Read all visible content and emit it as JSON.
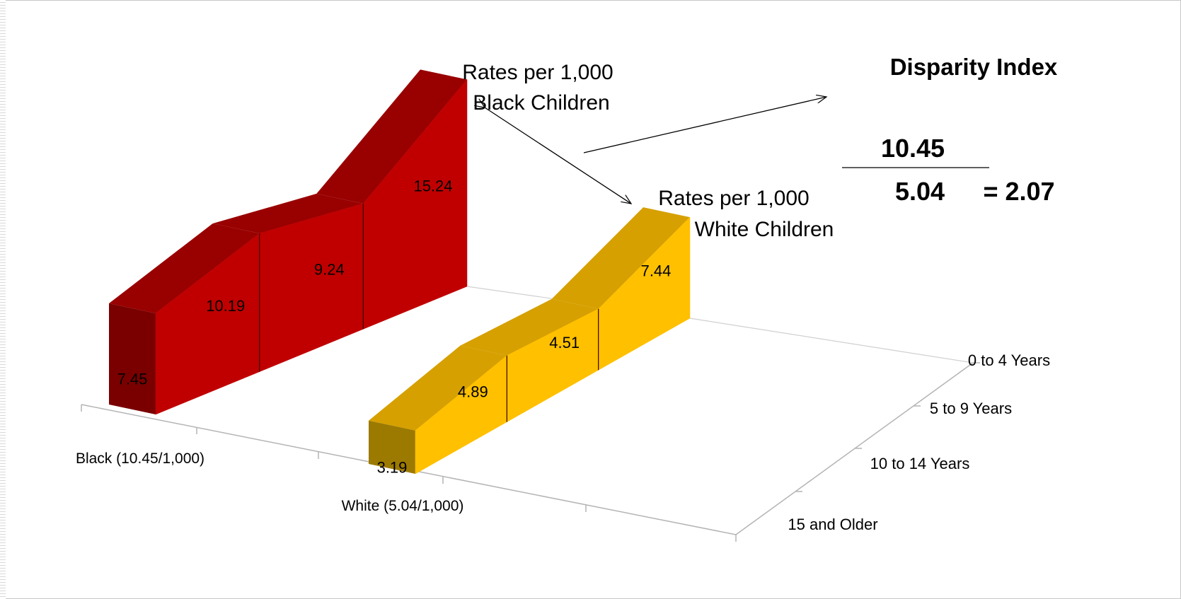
{
  "chart_data": {
    "type": "area",
    "categories": [
      "0 to 4 Years",
      "5 to 9 Years",
      "10 to 14 Years",
      "15 and Older"
    ],
    "series": [
      {
        "name": "Black (10.45/1,000)",
        "color": "#c00000",
        "side_color": "#7a0000",
        "top_color": "#990000",
        "values": [
          15.24,
          9.24,
          10.19,
          7.45
        ]
      },
      {
        "name": "White (5.04/1,000)",
        "color": "#ffc000",
        "side_color": "#9c7a00",
        "top_color": "#d6a000",
        "values": [
          7.44,
          4.51,
          4.89,
          3.19
        ]
      }
    ],
    "grid": false,
    "labels": {
      "black_rates": [
        "Rates per 1,000",
        "Black Children"
      ],
      "white_rates": [
        "Rates per 1,000",
        "White Children"
      ]
    },
    "disparity": {
      "title": "Disparity Index",
      "numerator": "10.45",
      "denominator": "5.04",
      "result": "= 2.07"
    }
  }
}
